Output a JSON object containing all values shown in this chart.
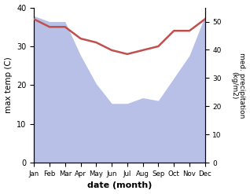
{
  "months": [
    "Jan",
    "Feb",
    "Mar",
    "Apr",
    "May",
    "Jun",
    "Jul",
    "Aug",
    "Sep",
    "Oct",
    "Nov",
    "Dec"
  ],
  "temperature": [
    37,
    35,
    35,
    32,
    31,
    29,
    28,
    29,
    30,
    34,
    34,
    37
  ],
  "precipitation": [
    52,
    50,
    50,
    38,
    28,
    21,
    21,
    23,
    22,
    30,
    38,
    52
  ],
  "temp_color": "#c0504d",
  "precip_fill_color": "#b8c0e8",
  "ylabel_left": "max temp (C)",
  "ylabel_right": "med. precipitation\n(kg/m2)",
  "xlabel": "date (month)",
  "ylim_left": [
    0,
    40
  ],
  "ylim_right": [
    0,
    55
  ],
  "yticks_left": [
    0,
    10,
    20,
    30,
    40
  ],
  "yticks_right": [
    0,
    10,
    20,
    30,
    40,
    50
  ],
  "bg_color": "#ffffff",
  "line_width": 1.8
}
